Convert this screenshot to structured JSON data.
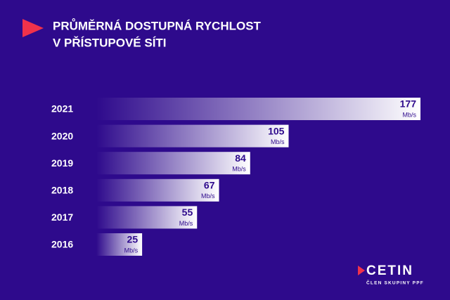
{
  "chart_data": {
    "type": "bar",
    "orientation": "horizontal",
    "title": [
      "PRŮMĚRNÁ DOSTUPNÁ RYCHLOST",
      "V PŘÍSTUPOVÉ SÍTI"
    ],
    "categories": [
      "2021",
      "2020",
      "2019",
      "2018",
      "2017",
      "2016"
    ],
    "values": [
      177,
      105,
      84,
      67,
      55,
      25
    ],
    "unit": "Mb/s",
    "color": "#ffffff"
  },
  "logo": {
    "name": "CETIN",
    "tagline": "ČLEN SKUPINY PPF"
  }
}
